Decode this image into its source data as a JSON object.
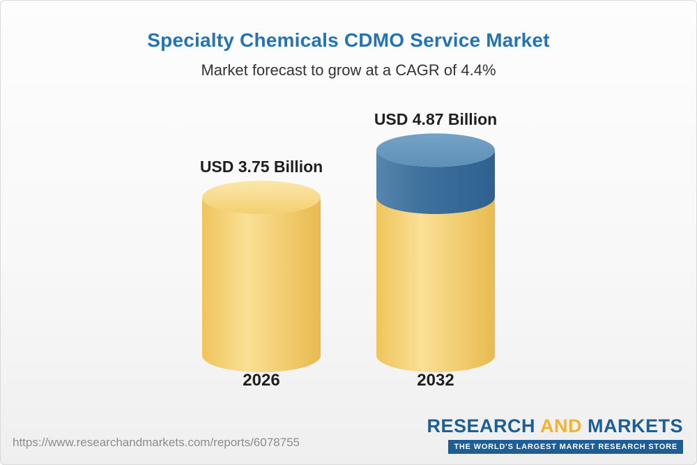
{
  "header": {
    "title": "Specialty Chemicals CDMO Service Market",
    "subtitle": "Market forecast to grow at a CAGR of 4.4%"
  },
  "chart_data": {
    "type": "bar",
    "subtype": "3d-cylinder",
    "title": "Specialty Chemicals CDMO Service Market",
    "xlabel": "",
    "ylabel": "",
    "unit": "USD Billion",
    "grid": false,
    "legend": false,
    "categories": [
      "2026",
      "2032"
    ],
    "values": [
      3.75,
      4.87
    ],
    "bars": [
      {
        "category": "2026",
        "label": "USD 3.75 Billion",
        "value": 3.75,
        "segments": [
          {
            "name": "base",
            "value": 3.75,
            "color": "#F6CE6B",
            "body": [
              "#EFC45C",
              "#FAE095",
              "#E9BA4F"
            ],
            "top": [
              "#FBE8AC",
              "#F3CF6F"
            ]
          }
        ]
      },
      {
        "category": "2032",
        "label": "USD 4.87 Billion",
        "value": 4.87,
        "segments": [
          {
            "name": "base",
            "value": 3.75,
            "color": "#F6CE6B",
            "body": [
              "#EFC45C",
              "#FAE095",
              "#E9BA4F"
            ],
            "top": [
              "#FBE8AC",
              "#F3CF6F"
            ]
          },
          {
            "name": "growth",
            "value": 1.12,
            "color": "#3D6F9E",
            "body": [
              "#5586AD",
              "#3F719D",
              "#2E6190"
            ],
            "top": [
              "#74A2C5",
              "#5E90B8"
            ]
          }
        ]
      }
    ]
  },
  "footer": {
    "url": "https://www.researchandmarkets.com/reports/6078755",
    "logo": {
      "word1": "RESEARCH",
      "word2": "AND",
      "word3": "MARKETS",
      "tagline": "THE WORLD'S LARGEST MARKET RESEARCH STORE"
    }
  },
  "colors": {
    "title_blue": "#2274B5",
    "bar_yellow": "#F6CE6B",
    "bar_blue": "#3D6F9E",
    "logo_blue": "#1C5E95",
    "logo_yellow": "#F5B32B",
    "url_gray": "#8C8C8C"
  }
}
